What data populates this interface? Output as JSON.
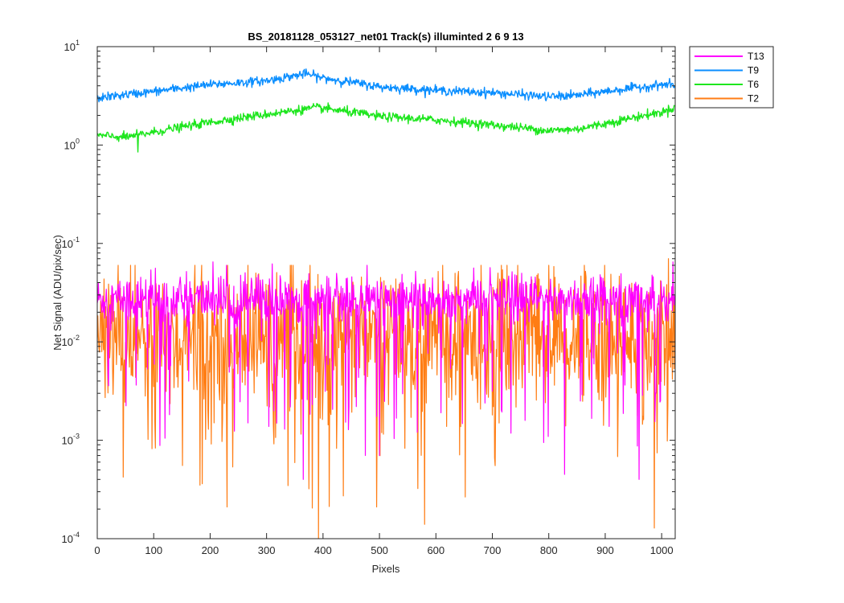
{
  "chart_data": {
    "type": "line",
    "title": "BS_20181128_053127_net01  Track(s) illuminted 2   6   9  13",
    "xlabel": "Pixels",
    "ylabel": "Net Signal (ADU/pix/sec)",
    "xlim": [
      0,
      1024
    ],
    "ylim": [
      0.0001,
      10
    ],
    "yscale": "log",
    "grid": false,
    "legend_position": "outside-top-right",
    "x_ticks": [
      0,
      100,
      200,
      300,
      400,
      500,
      600,
      700,
      800,
      900,
      1000
    ],
    "y_ticks": [
      {
        "base": "10",
        "exp": "-4",
        "value": 0.0001
      },
      {
        "base": "10",
        "exp": "-3",
        "value": 0.001
      },
      {
        "base": "10",
        "exp": "-2",
        "value": 0.01
      },
      {
        "base": "10",
        "exp": "-1",
        "value": 0.1
      },
      {
        "base": "10",
        "exp": "0",
        "value": 1
      },
      {
        "base": "10",
        "exp": "1",
        "value": 10
      }
    ],
    "series": [
      {
        "name": "T13",
        "color": "#ff00ff",
        "style": "noisy",
        "median": 0.027,
        "noise_sigma_log10": 0.12,
        "dip_probability": 0.07,
        "x": [
          0,
          1023
        ],
        "notable_min": [
          [
            120,
            0.00105
          ],
          [
            365,
            0.0004
          ],
          [
            475,
            0.0007
          ],
          [
            500,
            0.0007
          ],
          [
            828,
            0.00045
          ],
          [
            960,
            0.0004
          ]
        ],
        "notable_max": [
          [
            205,
            0.065
          ],
          [
            310,
            0.062
          ],
          [
            1020,
            0.065
          ]
        ]
      },
      {
        "name": "T9",
        "color": "#0a8eff",
        "style": "smooth",
        "x": [
          0,
          100,
          200,
          300,
          370,
          400,
          500,
          600,
          700,
          800,
          850,
          900,
          1000,
          1023
        ],
        "y": [
          3.0,
          3.5,
          4.1,
          4.5,
          5.3,
          4.8,
          3.9,
          3.6,
          3.4,
          3.1,
          3.2,
          3.5,
          4.1,
          4.1
        ]
      },
      {
        "name": "T6",
        "color": "#1ee61e",
        "style": "smooth",
        "x": [
          0,
          50,
          100,
          200,
          300,
          390,
          500,
          600,
          700,
          800,
          850,
          900,
          1000,
          1023
        ],
        "y": [
          1.25,
          1.2,
          1.35,
          1.7,
          2.05,
          2.4,
          1.95,
          1.8,
          1.6,
          1.4,
          1.45,
          1.65,
          2.15,
          2.4
        ],
        "notable_min": [
          [
            72,
            0.85
          ]
        ]
      },
      {
        "name": "T2",
        "color": "#ff7d14",
        "style": "noisy",
        "median": 0.011,
        "noise_sigma_log10": 0.35,
        "dip_probability": 0.05,
        "x": [
          0,
          1023
        ],
        "notable_min": [
          [
            182,
            0.00035
          ],
          [
            230,
            0.00021
          ],
          [
            495,
            0.00021
          ],
          [
            580,
            0.00014
          ]
        ],
        "notable_max": [
          [
            1012,
            0.07
          ]
        ]
      }
    ]
  }
}
